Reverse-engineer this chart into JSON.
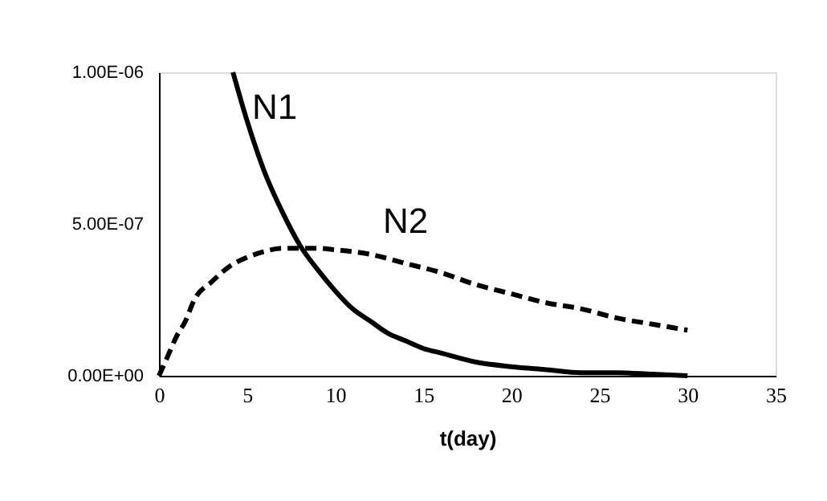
{
  "chart_data": {
    "type": "line",
    "xlabel": "t(day)",
    "xlim": [
      0,
      35
    ],
    "xticks": [
      0,
      5,
      10,
      15,
      20,
      25,
      30,
      35
    ],
    "ylim": [
      0,
      1e-06
    ],
    "yticks": [
      {
        "value": 0,
        "label": "0.00E+00"
      },
      {
        "value": 5e-07,
        "label": "5.00E-07"
      },
      {
        "value": 1e-06,
        "label": "1.00E-06"
      }
    ],
    "grid": false,
    "marker": "none",
    "series": [
      {
        "name": "N1",
        "color": "#000000",
        "line_style": "solid",
        "x": [
          4.2,
          5,
          6,
          7,
          8,
          9,
          10,
          11,
          12,
          13,
          14,
          15,
          16,
          18,
          20,
          22,
          24,
          26,
          28,
          30
        ],
        "values": [
          1e-06,
          8.4e-07,
          6.7e-07,
          5.4e-07,
          4.3e-07,
          3.5e-07,
          2.8e-07,
          2.2e-07,
          1.8e-07,
          1.4e-07,
          1.15e-07,
          9e-08,
          7.5e-08,
          4.5e-08,
          3e-08,
          2e-08,
          1e-08,
          1e-08,
          5e-09,
          0
        ]
      },
      {
        "name": "N2",
        "color": "#000000",
        "line_style": "dashed",
        "x": [
          0,
          0.5,
          1,
          1.5,
          2,
          3,
          4,
          5,
          6,
          7,
          8,
          9,
          10,
          12,
          14,
          16,
          18,
          20,
          22,
          24,
          26,
          28,
          30
        ],
        "values": [
          0,
          6.5e-08,
          1.3e-07,
          1.8e-07,
          2.5e-07,
          3.1e-07,
          3.6e-07,
          3.9e-07,
          4.1e-07,
          4.2e-07,
          4.2e-07,
          4.2e-07,
          4.15e-07,
          4e-07,
          3.7e-07,
          3.4e-07,
          3e-07,
          2.7e-07,
          2.4e-07,
          2.2e-07,
          1.9e-07,
          1.7e-07,
          1.5e-07
        ]
      }
    ]
  }
}
